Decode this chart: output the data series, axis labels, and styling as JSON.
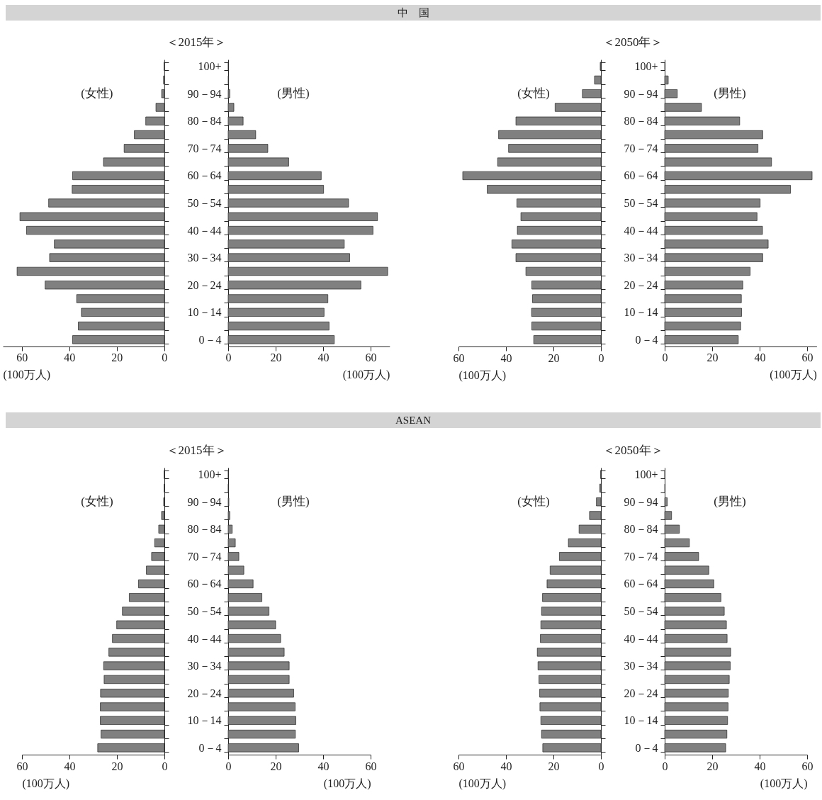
{
  "chart_data": [
    {
      "type": "other",
      "title": "中　国"
    },
    {
      "type": "bar",
      "orientation": "horizontal",
      "categories": [
        null,
        null,
        null,
        null,
        null,
        null,
        null,
        null,
        null,
        null,
        null,
        null,
        null,
        null,
        null,
        null,
        null,
        null,
        null,
        null,
        null
      ],
      "xlim": [
        68,
        0
      ],
      "xticks": [
        60,
        40,
        20,
        0
      ],
      "xlabel": "(100万人)",
      "tick_labels": "x",
      "series": [
        {
          "name": "(女性)",
          "color": "#808080",
          "values": [
            0.1,
            0.3,
            1.1,
            3.5,
            7.8,
            12.6,
            16.9,
            25.6,
            38.6,
            38.8,
            48.7,
            60.8,
            58.0,
            46.3,
            48.3,
            62.0,
            50.2,
            36.9,
            34.9,
            36.2,
            38.6
          ]
        }
      ]
    },
    {
      "type": "bar",
      "orientation": "horizontal",
      "title": "＜2015年＞",
      "categories": [
        "100+",
        null,
        "90－94",
        null,
        "80－84",
        null,
        "70－74",
        null,
        "60－64",
        null,
        "50－54",
        null,
        "40－44",
        null,
        "30－34",
        null,
        "20－24",
        null,
        "10－14",
        null,
        "0－4"
      ],
      "xlim": [
        0,
        68
      ],
      "xticks": [
        0,
        20,
        40,
        60
      ],
      "xlabel": "(100万人)",
      "series": [
        {
          "name": "(男性)",
          "color": "#808080",
          "values": [
            0.1,
            0.2,
            0.7,
            2.4,
            6.3,
            11.6,
            16.7,
            25.5,
            39.2,
            40.2,
            50.7,
            62.9,
            61.0,
            48.9,
            51.2,
            67.2,
            55.9,
            42.0,
            40.4,
            42.5,
            44.7
          ]
        }
      ]
    },
    {
      "type": "bar",
      "orientation": "horizontal",
      "categories": [
        null,
        null,
        null,
        null,
        null,
        null,
        null,
        null,
        null,
        null,
        null,
        null,
        null,
        null,
        null,
        null,
        null,
        null,
        null,
        null,
        null
      ],
      "xlim": [
        60,
        0
      ],
      "xticks": [
        60,
        40,
        20,
        0
      ],
      "xlabel": "(100万人)",
      "tick_labels": "x",
      "series": [
        {
          "name": "(女性)",
          "color": "#808080",
          "values": [
            0.3,
            2.7,
            7.8,
            19.3,
            35.8,
            43.1,
            38.9,
            43.5,
            58.2,
            47.9,
            35.4,
            33.7,
            35.2,
            37.5,
            35.8,
            31.6,
            29.1,
            28.8,
            29.2,
            29.1,
            28.3
          ]
        }
      ]
    },
    {
      "type": "bar",
      "orientation": "horizontal",
      "title": "＜2050年＞",
      "categories": [
        "100+",
        null,
        "90－94",
        null,
        "80－84",
        null,
        "70－74",
        null,
        "60－64",
        null,
        "50－54",
        null,
        "40－44",
        null,
        "30－34",
        null,
        "20－24",
        null,
        "10－14",
        null,
        "0－4"
      ],
      "xlim": [
        0,
        64
      ],
      "xticks": [
        0,
        20,
        40,
        60
      ],
      "xlabel": "(100万人)",
      "series": [
        {
          "name": "(男性)",
          "color": "#808080",
          "values": [
            0.2,
            1.5,
            5.3,
            15.5,
            31.6,
            41.3,
            39.3,
            45.0,
            62.1,
            53.0,
            40.2,
            38.9,
            41.2,
            43.6,
            41.3,
            36.0,
            32.9,
            32.3,
            32.4,
            32.0,
            31.0
          ]
        }
      ]
    },
    {
      "type": "other",
      "title": "ASEAN"
    },
    {
      "type": "bar",
      "orientation": "horizontal",
      "categories": [
        null,
        null,
        null,
        null,
        null,
        null,
        null,
        null,
        null,
        null,
        null,
        null,
        null,
        null,
        null,
        null,
        null,
        null,
        null,
        null,
        null
      ],
      "xlim": [
        60,
        0
      ],
      "xticks": [
        60,
        40,
        20,
        0
      ],
      "xlabel": "(100万人)",
      "tick_labels": "x",
      "series": [
        {
          "name": "(女性)",
          "color": "#808080",
          "values": [
            0.1,
            0.1,
            0.3,
            1.2,
            2.4,
            4.1,
            5.4,
            7.6,
            10.9,
            14.8,
            17.7,
            20.1,
            21.9,
            23.4,
            25.6,
            25.4,
            26.9,
            27.0,
            27.0,
            26.7,
            28.1
          ]
        }
      ]
    },
    {
      "type": "bar",
      "orientation": "horizontal",
      "title": "＜2015年＞",
      "categories": [
        "100+",
        null,
        "90－94",
        null,
        "80－84",
        null,
        "70－74",
        null,
        "60－64",
        null,
        "50－54",
        null,
        "40－44",
        null,
        "30－34",
        null,
        "20－24",
        null,
        "10－14",
        null,
        "0－4"
      ],
      "xlim": [
        0,
        60
      ],
      "xticks": [
        0,
        20,
        40,
        60
      ],
      "xlabel": "(100万人)",
      "series": [
        {
          "name": "(男性)",
          "color": "#808080",
          "values": [
            0.1,
            0.1,
            0.3,
            0.7,
            1.7,
            3.0,
            4.5,
            6.6,
            10.5,
            14.2,
            17.2,
            20.0,
            22.1,
            23.6,
            25.7,
            25.7,
            27.6,
            28.2,
            28.5,
            28.3,
            29.7
          ]
        }
      ]
    },
    {
      "type": "bar",
      "orientation": "horizontal",
      "categories": [
        null,
        null,
        null,
        null,
        null,
        null,
        null,
        null,
        null,
        null,
        null,
        null,
        null,
        null,
        null,
        null,
        null,
        null,
        null,
        null,
        null
      ],
      "xlim": [
        60,
        0
      ],
      "xticks": [
        60,
        40,
        20,
        0
      ],
      "xlabel": "(100万人)",
      "tick_labels": "x",
      "series": [
        {
          "name": "(女性)",
          "color": "#808080",
          "values": [
            0.1,
            0.5,
            1.9,
            4.8,
            9.2,
            13.7,
            17.5,
            21.4,
            22.7,
            24.6,
            25.0,
            25.3,
            25.5,
            26.8,
            26.5,
            26.1,
            25.8,
            25.7,
            25.3,
            25.0,
            24.5
          ]
        }
      ]
    },
    {
      "type": "bar",
      "orientation": "horizontal",
      "title": "＜2050年＞",
      "categories": [
        "100+",
        null,
        "90－94",
        null,
        "80－84",
        null,
        "70－74",
        null,
        "60－64",
        null,
        "50－54",
        null,
        "40－44",
        null,
        "30－34",
        null,
        "20－24",
        null,
        "10－14",
        null,
        "0－4"
      ],
      "xlim": [
        0,
        60
      ],
      "xticks": [
        0,
        20,
        40,
        60
      ],
      "xlabel": "(100万人)",
      "series": [
        {
          "name": "(男性)",
          "color": "#808080",
          "values": [
            0.1,
            0.2,
            1.1,
            2.9,
            6.2,
            10.4,
            14.3,
            18.6,
            20.7,
            23.7,
            25.1,
            26.0,
            26.3,
            27.8,
            27.6,
            27.2,
            26.8,
            26.7,
            26.5,
            26.2,
            25.7
          ]
        }
      ]
    }
  ]
}
